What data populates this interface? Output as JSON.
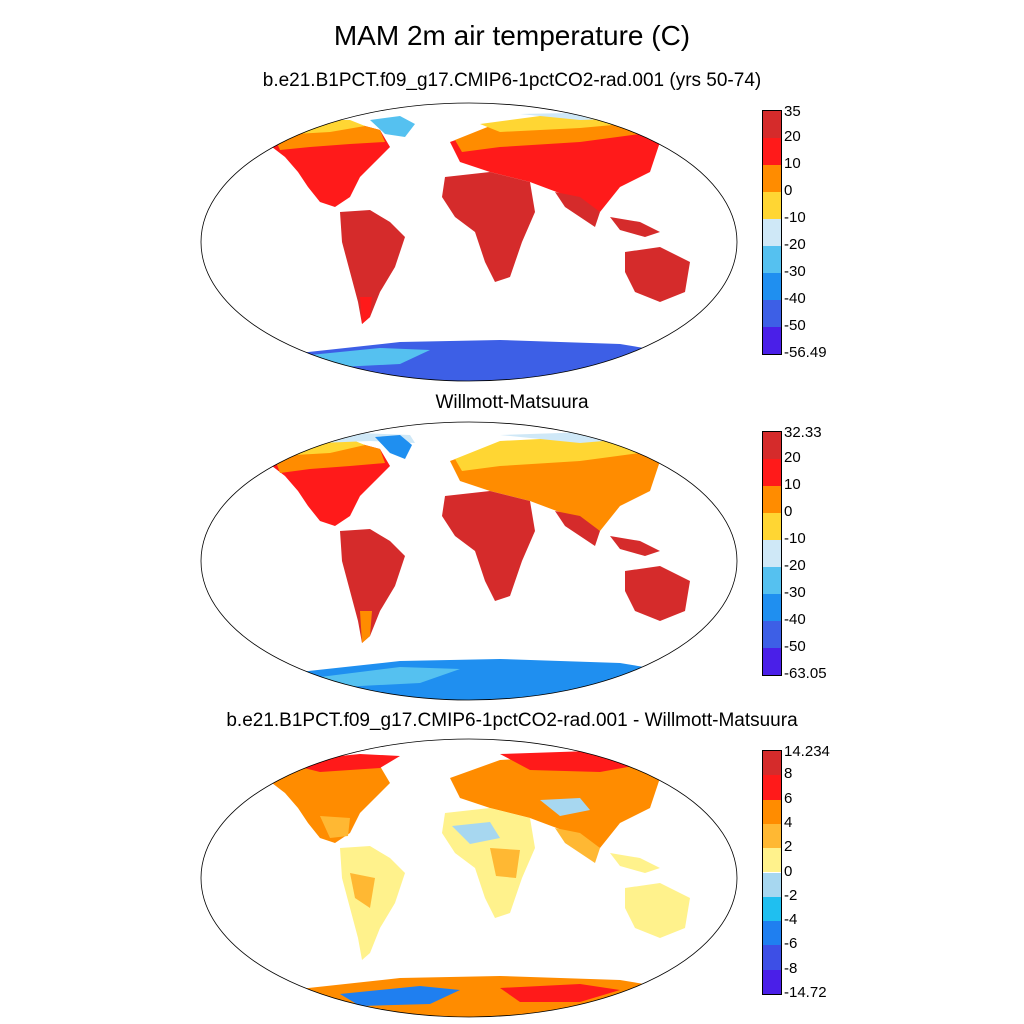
{
  "main_title": "MAM 2m air temperature (C)",
  "panels": [
    {
      "title": "b.e21.B1PCT.f09_g17.CMIP6-1pctCO2-rad.001 (yrs 50-74)",
      "colorbar": {
        "labels": [
          "35",
          "20",
          "10",
          "0",
          "-10",
          "-20",
          "-30",
          "-40",
          "-50",
          "-56.49"
        ],
        "colors": [
          "#d52b2b",
          "#ff1a1a",
          "#ff8c00",
          "#ffd633",
          "#cfe8f7",
          "#55c1f0",
          "#1f8ff0",
          "#3d5fe6",
          "#4a1fe8"
        ]
      }
    },
    {
      "title": "Willmott-Matsuura",
      "colorbar": {
        "labels": [
          "32.33",
          "20",
          "10",
          "0",
          "-10",
          "-20",
          "-30",
          "-40",
          "-50",
          "-63.05"
        ],
        "colors": [
          "#d52b2b",
          "#ff1a1a",
          "#ff8c00",
          "#ffd633",
          "#cfe8f7",
          "#55c1f0",
          "#1f8ff0",
          "#3d5fe6",
          "#4a1fe8"
        ]
      }
    },
    {
      "title": "b.e21.B1PCT.f09_g17.CMIP6-1pctCO2-rad.001 - Willmott-Matsuura",
      "colorbar": {
        "labels": [
          "14.234",
          "8",
          "6",
          "4",
          "2",
          "0",
          "-2",
          "-4",
          "-6",
          "-8",
          "-14.72"
        ],
        "colors": [
          "#d52b2b",
          "#ff1a1a",
          "#ff8c00",
          "#ffb833",
          "#fff28c",
          "#a7d7f0",
          "#1fbff0",
          "#1f7ff0",
          "#3d4fe6",
          "#4a1fe8"
        ]
      }
    }
  ]
}
